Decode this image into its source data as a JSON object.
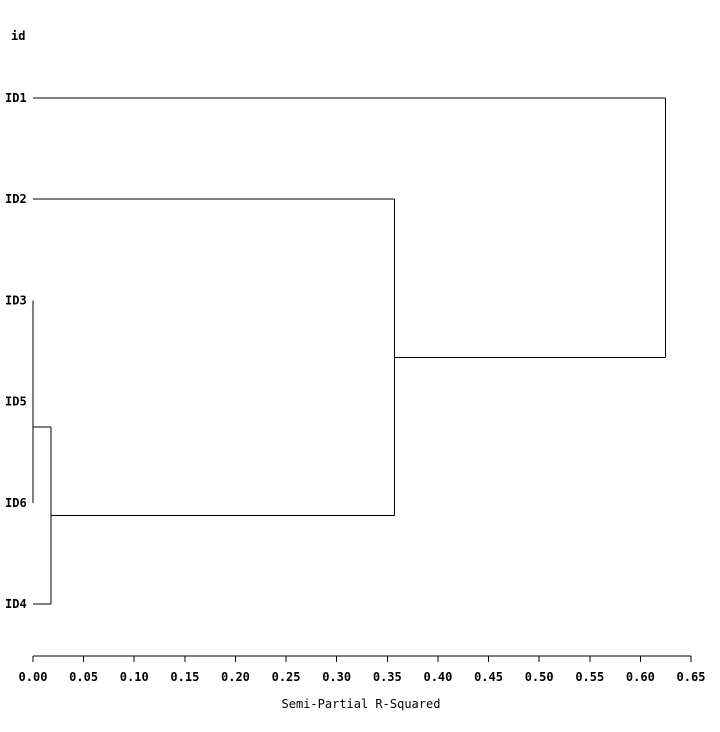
{
  "chart_data": {
    "type": "dendrogram",
    "orientation": "horizontal",
    "ylabel": "id",
    "xlabel": "Semi-Partial R-Squared",
    "xlim": [
      0,
      0.65
    ],
    "xticks": [
      "0.00",
      "0.05",
      "0.10",
      "0.15",
      "0.20",
      "0.25",
      "0.30",
      "0.35",
      "0.40",
      "0.45",
      "0.50",
      "0.55",
      "0.60",
      "0.65"
    ],
    "leaves": [
      "ID1",
      "ID2",
      "ID3",
      "ID5",
      "ID6",
      "ID4"
    ],
    "merges": [
      {
        "a": "ID3",
        "b": "ID5",
        "height": 0.0
      },
      {
        "a": "ID3+ID5",
        "b": "ID6",
        "height": 0.0
      },
      {
        "a": "ID3+ID5+ID6",
        "b": "ID4",
        "height": 0.018
      },
      {
        "a": "ID2",
        "b": "ID3+ID5+ID6+ID4",
        "height": 0.357
      },
      {
        "a": "ID1",
        "b": "ID2+ID3+ID5+ID6+ID4",
        "height": 0.625
      }
    ],
    "line_color": "#000000",
    "grid": false
  }
}
